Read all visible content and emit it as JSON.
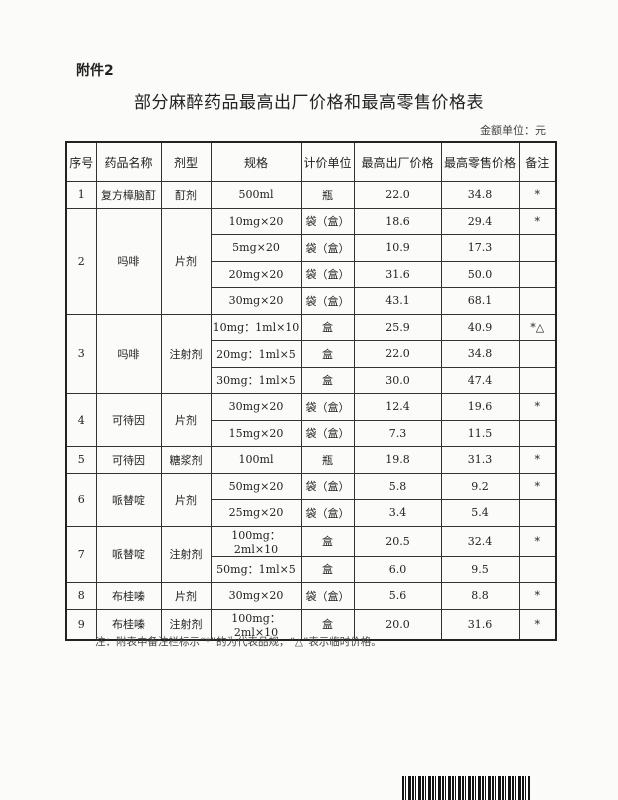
{
  "attachment": "附件2",
  "title": "部分麻醉药品最高出厂价格和最高零售价格表",
  "unit": "金额单位：元",
  "headers": [
    "序号",
    "药品名称",
    "剂型",
    "规格",
    "计价单位",
    "最高出厂价格",
    "最高零售价格",
    "备注"
  ],
  "groups": [
    {
      "no": "1",
      "name": "复方樟脑酊",
      "form": "酊剂",
      "rows": [
        [
          "500ml",
          "瓶",
          "22.0",
          "34.8",
          "*"
        ]
      ]
    },
    {
      "no": "2",
      "name": "吗啡",
      "form": "片剂",
      "rows": [
        [
          "10mg×20",
          "袋（盒）",
          "18.6",
          "29.4",
          "*"
        ],
        [
          "5mg×20",
          "袋（盒）",
          "10.9",
          "17.3",
          ""
        ],
        [
          "20mg×20",
          "袋（盒）",
          "31.6",
          "50.0",
          ""
        ],
        [
          "30mg×20",
          "袋（盒）",
          "43.1",
          "68.1",
          ""
        ]
      ]
    },
    {
      "no": "3",
      "name": "吗啡",
      "form": "注射剂",
      "rows": [
        [
          "10mg：1ml×10",
          "盒",
          "25.9",
          "40.9",
          "*△"
        ],
        [
          "20mg：1ml×5",
          "盒",
          "22.0",
          "34.8",
          ""
        ],
        [
          "30mg：1ml×5",
          "盒",
          "30.0",
          "47.4",
          ""
        ]
      ]
    },
    {
      "no": "4",
      "name": "可待因",
      "form": "片剂",
      "rows": [
        [
          "30mg×20",
          "袋（盒）",
          "12.4",
          "19.6",
          "*"
        ],
        [
          "15mg×20",
          "袋（盒）",
          "7.3",
          "11.5",
          ""
        ]
      ]
    },
    {
      "no": "5",
      "name": "可待因",
      "form": "糖浆剂",
      "rows": [
        [
          "100ml",
          "瓶",
          "19.8",
          "31.3",
          "*"
        ]
      ]
    },
    {
      "no": "6",
      "name": "哌替啶",
      "form": "片剂",
      "rows": [
        [
          "50mg×20",
          "袋（盒）",
          "5.8",
          "9.2",
          "*"
        ],
        [
          "25mg×20",
          "袋（盒）",
          "3.4",
          "5.4",
          ""
        ]
      ]
    },
    {
      "no": "7",
      "name": "哌替啶",
      "form": "注射剂",
      "rows": [
        [
          "100mg：2ml×10",
          "盒",
          "20.5",
          "32.4",
          "*"
        ],
        [
          "50mg：1ml×5",
          "盒",
          "6.0",
          "9.5",
          ""
        ]
      ]
    },
    {
      "no": "8",
      "name": "布桂嗪",
      "form": "片剂",
      "rows": [
        [
          "30mg×20",
          "袋（盒）",
          "5.6",
          "8.8",
          "*"
        ]
      ]
    },
    {
      "no": "9",
      "name": "布桂嗪",
      "form": "注射剂",
      "rows": [
        [
          "100mg：2ml×10",
          "盒",
          "20.0",
          "31.6",
          "*"
        ]
      ]
    }
  ],
  "note": "注：附表中备注栏标示“*”的为代表品规，“△”表示临时价格。"
}
